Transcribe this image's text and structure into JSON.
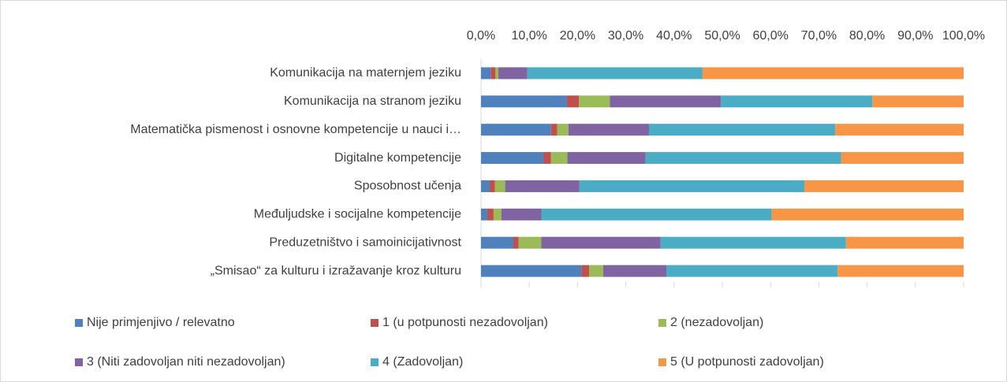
{
  "chart_data": {
    "type": "stacked_barh",
    "categories": [
      "Komunikacija na maternjem jeziku",
      "Komunikacija na stranom jeziku",
      "Matematička pismenost i osnovne kompetencije u nauci i…",
      "Digitalne kompetencije",
      "Sposobnost učenja",
      "Međuljudske i socijalne kompetencije",
      "Preduzetništvo i samoinicijativnost",
      "„Smisao“ za kulturu i izražavanje kroz kulturu"
    ],
    "series": [
      {
        "name": "Nije primjenjivo / relevatno",
        "color": "#4f81bd",
        "values": [
          2.0,
          17.8,
          14.5,
          12.9,
          1.8,
          1.3,
          6.7,
          20.8
        ]
      },
      {
        "name": "1 (u potpunosti nezadovoljan)",
        "color": "#c0504d",
        "values": [
          1.0,
          2.5,
          1.3,
          1.6,
          1.1,
          1.3,
          1.1,
          1.6
        ]
      },
      {
        "name": "2 (nezadovoljan)",
        "color": "#9bbb59",
        "values": [
          0.6,
          6.4,
          2.3,
          3.4,
          2.1,
          1.6,
          4.7,
          2.9
        ]
      },
      {
        "name": "3 (Niti zadovoljan niti nezadovoljan)",
        "color": "#8064a2",
        "values": [
          6.0,
          23.0,
          16.7,
          16.2,
          15.4,
          8.3,
          24.7,
          13.1
        ]
      },
      {
        "name": "4 (Zadovoljan)",
        "color": "#4bacc6",
        "values": [
          36.3,
          31.4,
          38.6,
          40.5,
          46.6,
          47.7,
          38.4,
          35.5
        ]
      },
      {
        "name": "5 (U potpunosti zadovoljan)",
        "color": "#f79646",
        "values": [
          54.1,
          18.9,
          26.6,
          25.4,
          33.0,
          39.8,
          24.4,
          26.1
        ]
      }
    ],
    "xlim": [
      0,
      100
    ],
    "xticks": [
      {
        "value": 0,
        "label": "0,0%"
      },
      {
        "value": 10,
        "label": "10,0%"
      },
      {
        "value": 20,
        "label": "20,0%"
      },
      {
        "value": 30,
        "label": "30,0%"
      },
      {
        "value": 40,
        "label": "40,0%"
      },
      {
        "value": 50,
        "label": "50,0%"
      },
      {
        "value": 60,
        "label": "60,0%"
      },
      {
        "value": 70,
        "label": "70,0%"
      },
      {
        "value": 80,
        "label": "80,0%"
      },
      {
        "value": 90,
        "label": "90,0%"
      },
      {
        "value": 100,
        "label": "100,0%"
      }
    ],
    "legend": "bottom"
  }
}
